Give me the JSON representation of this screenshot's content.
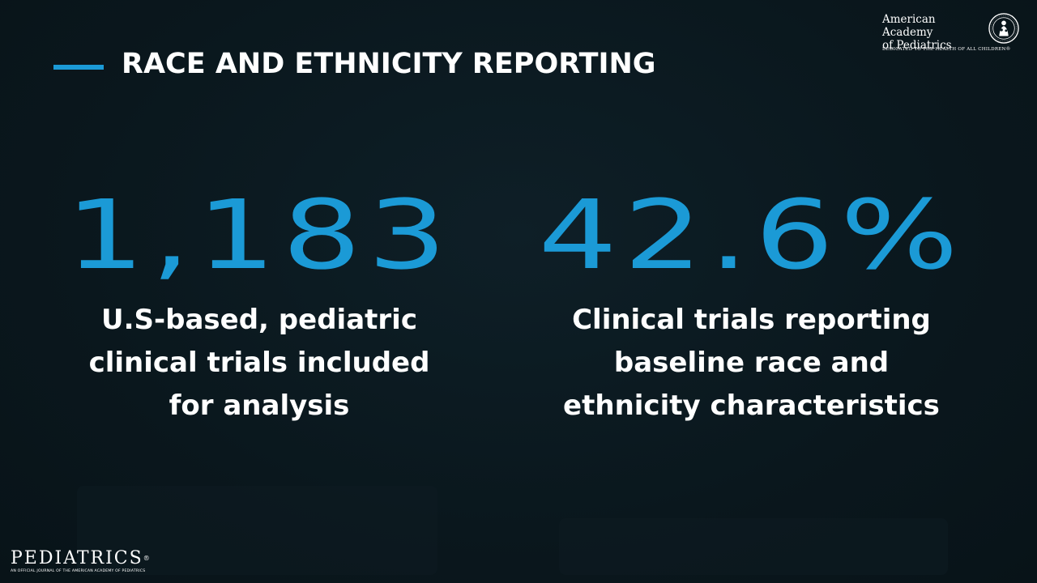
{
  "header": {
    "title": "RACE AND ETHNICITY REPORTING",
    "accent_color": "#1b9ad6"
  },
  "aap_logo": {
    "name_line1": "American Academy",
    "name_line2": "of Pediatrics",
    "tagline": "DEDICATED TO THE HEALTH OF ALL CHILDREN®",
    "seal_icon": "aap-seal-icon"
  },
  "stats": [
    {
      "value": "1,183",
      "label_lines": [
        "U.S-based, pediatric",
        "clinical trials included",
        "for analysis"
      ]
    },
    {
      "value": "42.6%",
      "label_lines": [
        "Clinical trials reporting",
        "baseline race and",
        "ethnicity characteristics"
      ]
    }
  ],
  "journal_logo": {
    "name": "PEDIATRICS",
    "reg_mark": "®",
    "tagline": "AN OFFICIAL JOURNAL OF THE AMERICAN ACADEMY OF PEDIATRICS"
  },
  "colors": {
    "background": "#0b1920",
    "number": "#1b9ad6",
    "text": "#ffffff"
  }
}
